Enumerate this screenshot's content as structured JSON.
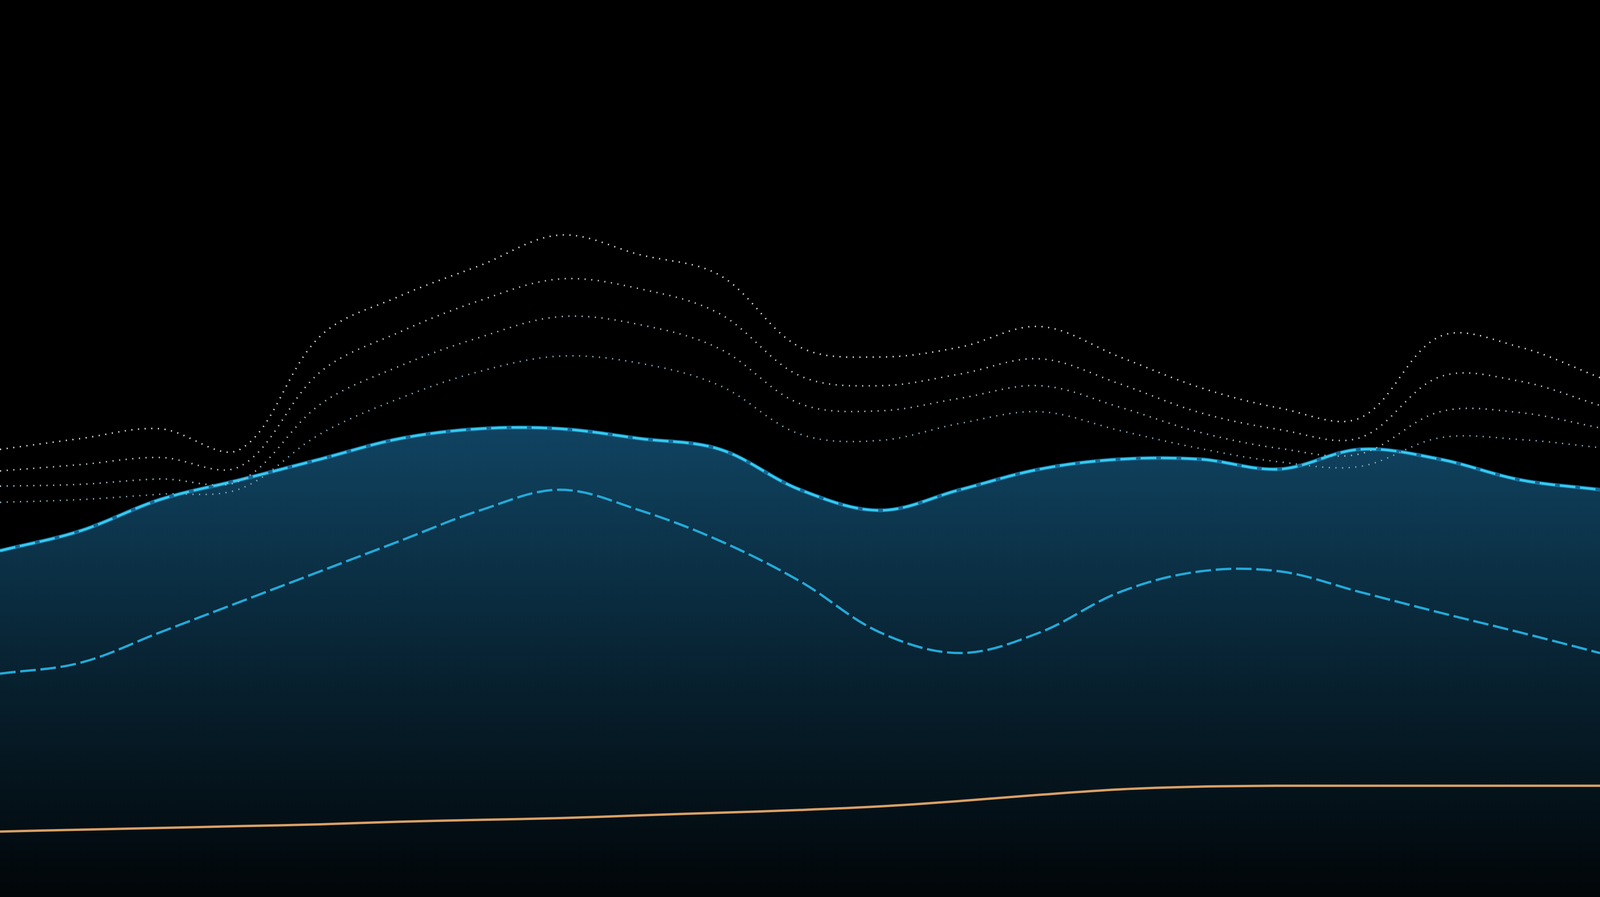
{
  "chart_data": {
    "type": "line",
    "x": [
      0,
      5,
      10,
      15,
      20,
      25,
      30,
      35,
      40,
      45,
      50,
      55,
      60,
      65,
      70,
      75,
      80,
      85,
      90,
      95,
      100
    ],
    "xlim": [
      0,
      100
    ],
    "ylim": [
      0,
      100
    ],
    "grid": false,
    "tick_labels": false,
    "series": [
      {
        "type": "area",
        "color": "#1a6fa0",
        "line_style": "solid",
        "marker": "none",
        "values": [
          38.6,
          40.8,
          44.3,
          46.5,
          48.8,
          51.1,
          52.2,
          52.2,
          51.1,
          49.9,
          45.4,
          43.1,
          45.4,
          47.7,
          48.8,
          48.8,
          47.7,
          49.9,
          48.8,
          46.5,
          45.4
        ]
      },
      {
        "type": "line",
        "color": "#cfd8dc",
        "line_style": "dotted",
        "marker": "none",
        "values": [
          49.9,
          51.1,
          52.2,
          49.9,
          62.5,
          67.0,
          70.4,
          73.8,
          71.6,
          69.3,
          61.3,
          60.2,
          61.3,
          63.6,
          60.2,
          56.8,
          54.5,
          53.4,
          62.5,
          61.3,
          57.9
        ]
      },
      {
        "type": "line",
        "color": "#b8c4c9",
        "line_style": "dotted",
        "marker": "none",
        "values": [
          47.5,
          48.2,
          49.0,
          48.0,
          58.5,
          63.0,
          66.5,
          68.9,
          67.8,
          65.0,
          58.1,
          57.0,
          58.3,
          60.0,
          57.2,
          54.0,
          52.1,
          51.2,
          58.0,
          57.5,
          54.8
        ]
      },
      {
        "type": "line",
        "color": "#9fb3bb",
        "line_style": "dotted",
        "marker": "none",
        "values": [
          45.8,
          46.0,
          46.6,
          46.4,
          54.9,
          59.2,
          62.4,
          64.7,
          63.8,
          61.1,
          55.0,
          54.2,
          55.6,
          57.0,
          54.6,
          51.8,
          50.0,
          49.4,
          54.1,
          54.0,
          52.3
        ]
      },
      {
        "type": "line",
        "color": "#7fa6b3",
        "line_style": "dotted",
        "marker": "none",
        "values": [
          44.0,
          44.3,
          44.9,
          45.5,
          51.6,
          55.6,
          58.6,
          60.3,
          59.5,
          57.0,
          51.6,
          50.9,
          52.8,
          54.1,
          52.0,
          50.0,
          48.5,
          48.0,
          51.2,
          51.0,
          50.1
        ]
      },
      {
        "type": "line",
        "color": "#33ccf0",
        "line_style": "dashed",
        "marker": "none",
        "values": [
          38.6,
          40.8,
          44.3,
          46.5,
          48.8,
          51.1,
          52.2,
          52.2,
          51.1,
          49.9,
          45.4,
          43.1,
          45.4,
          47.7,
          48.8,
          48.8,
          47.7,
          49.9,
          48.8,
          46.5,
          45.4
        ]
      },
      {
        "type": "line",
        "color": "#22a9d8",
        "line_style": "dashed",
        "marker": "none",
        "values": [
          24.9,
          26.1,
          29.5,
          32.9,
          36.3,
          39.7,
          43.1,
          45.4,
          43.1,
          39.7,
          35.2,
          29.5,
          27.2,
          29.5,
          34.0,
          36.3,
          36.3,
          34.0,
          31.7,
          29.5,
          27.2
        ]
      },
      {
        "type": "line",
        "color": "#d9a066",
        "line_style": "solid",
        "marker": "none",
        "values": [
          7.3,
          7.5,
          7.7,
          7.9,
          8.1,
          8.4,
          8.6,
          8.8,
          9.1,
          9.4,
          9.7,
          10.1,
          10.7,
          11.4,
          12.0,
          12.3,
          12.4,
          12.4,
          12.4,
          12.4,
          12.4
        ]
      }
    ]
  }
}
